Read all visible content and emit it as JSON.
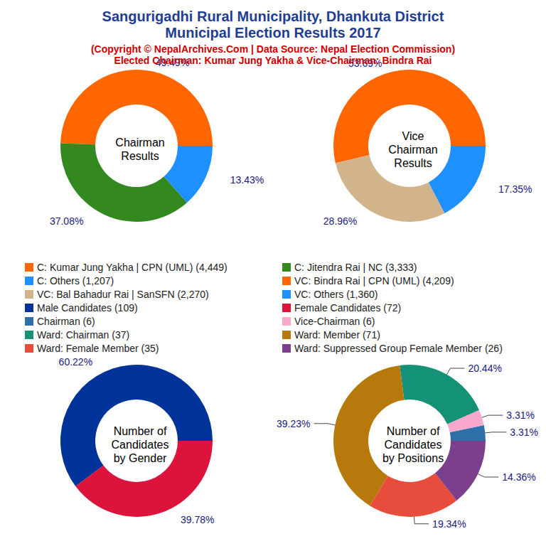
{
  "header": {
    "title": "Sangurigadhi Rural Municipality, Dhankuta District\nMunicipal Election Results 2017",
    "subtitle": "(Copyright © NepalArchives.Com | Data Source: Nepal Election Commission)\nElected Chairman: Kumar Jung Yakha & Vice-Chairman: Bindra Rai"
  },
  "chart_data": [
    {
      "type": "pie",
      "title": "Chairman\nResults",
      "categories": [
        "C: Kumar Jung Yakha | CPN (UML) (4,449)",
        "C: Jitendra Rai | NC (3,333)",
        "C: Others (1,207)"
      ],
      "values": [
        49.49,
        37.08,
        13.43
      ],
      "value_labels": [
        "49.49%",
        "37.08%",
        "13.43%"
      ],
      "colors": [
        "#ff6600",
        "#33891f",
        "#1e90ff"
      ],
      "data_labels": true
    },
    {
      "type": "pie",
      "title": "Vice\nChairman\nResults",
      "categories": [
        "VC: Bindra Rai | CPN (UML) (4,209)",
        "VC: Bal Bahadur Rai | SanSFN (2,270)",
        "VC: Others (1,360)"
      ],
      "values": [
        53.69,
        28.96,
        17.35
      ],
      "value_labels": [
        "53.69%",
        "28.96%",
        "17.35%"
      ],
      "colors": [
        "#ff6600",
        "#d2b48c",
        "#1e90ff"
      ],
      "data_labels": true
    },
    {
      "type": "pie",
      "title": "Number of\nCandidates\nby Gender",
      "categories": [
        "Male Candidates (109)",
        "Female Candidates (72)"
      ],
      "values": [
        60.22,
        39.78
      ],
      "value_labels": [
        "60.22%",
        "39.78%"
      ],
      "colors": [
        "#003399",
        "#dc143c"
      ],
      "data_labels": true
    },
    {
      "type": "pie",
      "title": "Number of\nCandidates\nby Positions",
      "categories": [
        "Chairman (6)",
        "Vice-Chairman (6)",
        "Ward: Chairman (37)",
        "Ward: Member (71)",
        "Ward: Female Member (35)",
        "Ward: Suppressed Group Female Member (26)"
      ],
      "values": [
        3.31,
        3.31,
        20.44,
        39.23,
        19.34,
        14.36
      ],
      "value_labels": [
        "3.31%",
        "3.31%",
        "20.44%",
        "39.23%",
        "19.34%",
        "14.36%"
      ],
      "colors": [
        "#2f6fa8",
        "#f8a8cc",
        "#139278",
        "#b8790c",
        "#e74c3c",
        "#7b3f8c"
      ],
      "data_labels": true
    }
  ]
}
